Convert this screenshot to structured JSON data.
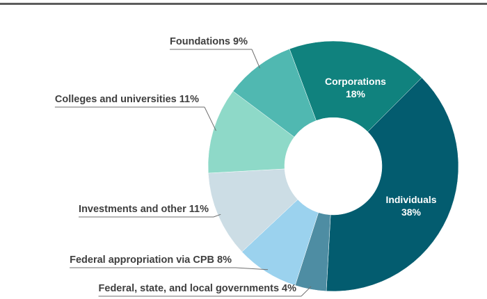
{
  "chart_data": {
    "type": "pie",
    "donut": true,
    "title": "",
    "slices": [
      {
        "name": "Individuals",
        "value": 38,
        "label": "Individuals",
        "pct": "38%",
        "color": "#035C6F",
        "label_style": "inside"
      },
      {
        "name": "Federal, state, and local governments",
        "value": 4,
        "label": "Federal, state, and local governments 4%",
        "color": "#4E8DA3",
        "label_style": "outside"
      },
      {
        "name": "Federal appropriation via CPB",
        "value": 8,
        "label": "Federal appropriation via CPB 8%",
        "color": "#9BD2EE",
        "label_style": "outside"
      },
      {
        "name": "Investments and other",
        "value": 11,
        "label": "Investments and other 11%",
        "color": "#CCDDE5",
        "label_style": "outside"
      },
      {
        "name": "Colleges and universities",
        "value": 11,
        "label": "Colleges and universities 11%",
        "color": "#8ED9C8",
        "label_style": "outside"
      },
      {
        "name": "Foundations",
        "value": 9,
        "label": "Foundations 9%",
        "color": "#50B8B1",
        "label_style": "outside"
      },
      {
        "name": "Corporations",
        "value": 18,
        "label": "Corporations",
        "pct": "18%",
        "color": "#10827E",
        "label_style": "inside"
      }
    ]
  }
}
